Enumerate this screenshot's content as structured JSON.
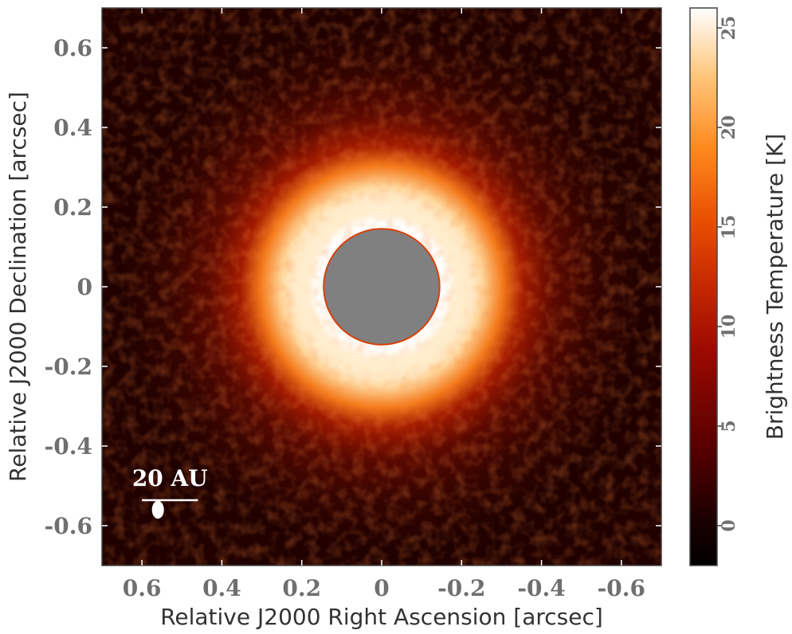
{
  "chart_data": {
    "type": "heatmap",
    "title": "",
    "xlabel": "Relative J2000 Right Ascension [arcsec]",
    "ylabel": "Relative J2000 Declination [arcsec]",
    "xlim": [
      0.7,
      -0.7
    ],
    "ylim": [
      -0.7,
      0.7
    ],
    "x_ticks": [
      0.6,
      0.4,
      0.2,
      0,
      -0.2,
      -0.4,
      -0.6
    ],
    "x_tick_labels": [
      "0.6",
      "0.4",
      "0.2",
      "0",
      "-0.2",
      "-0.4",
      "-0.6"
    ],
    "y_ticks": [
      0.6,
      0.4,
      0.2,
      0,
      -0.2,
      -0.4,
      -0.6
    ],
    "y_tick_labels": [
      "0.6",
      "0.4",
      "0.2",
      "0",
      "-0.2",
      "-0.4",
      "-0.6"
    ],
    "colorbar": {
      "label": "Brightness Temperature [K]",
      "range": [
        -2,
        26
      ],
      "ticks": [
        0,
        5,
        10,
        15,
        20,
        25
      ],
      "tick_labels": [
        "0",
        "5",
        "10",
        "15",
        "20",
        "25"
      ],
      "colormap": "gist_heat"
    },
    "ring": {
      "center": [
        0,
        0
      ],
      "radius_arcsec": 0.2,
      "peak_temperature_K": 25
    },
    "mask": {
      "center": [
        0,
        0
      ],
      "radius_arcsec": 0.145,
      "color": "#808080"
    },
    "scale_bar": {
      "label": "20 AU",
      "x_start": 0.6,
      "x_end": 0.46,
      "y": -0.5
    },
    "beam": {
      "x": 0.56,
      "y": -0.56,
      "width_arcsec": 0.03,
      "height_arcsec": 0.045
    },
    "grid": false
  },
  "colors": {
    "background": "#ffffff",
    "mask": "#808080",
    "annotation": "#ffffff",
    "tick_label": "#6f6f6f",
    "axis_title": "#333333"
  }
}
